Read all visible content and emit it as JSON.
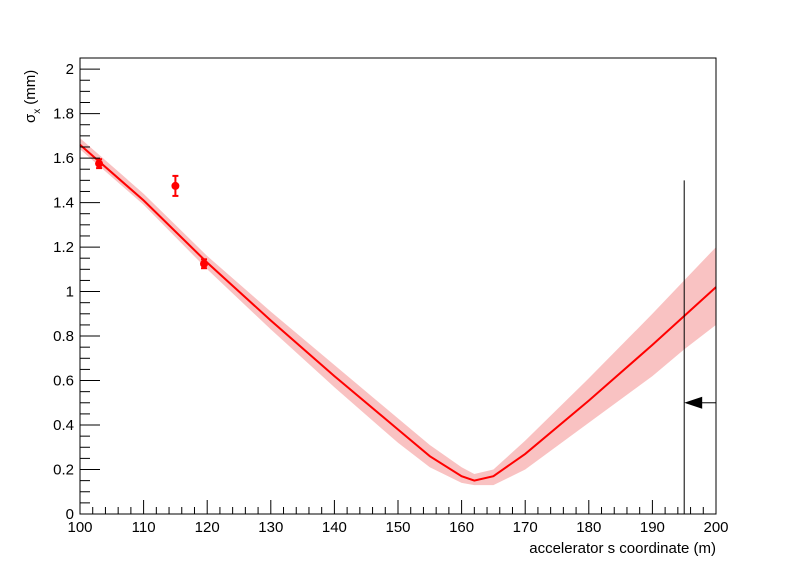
{
  "chart_data": {
    "type": "line",
    "title": "",
    "xlabel": "accelerator s coordinate (m)",
    "ylabel": {
      "symbol": "σ",
      "subscript": "x",
      "unit": "(mm)"
    },
    "xlim": [
      100,
      200
    ],
    "ylim": [
      0,
      2.05
    ],
    "grid": false,
    "legend": "none",
    "x_ticks": [
      100,
      110,
      120,
      130,
      140,
      150,
      160,
      170,
      180,
      190,
      200
    ],
    "x_tick_labels": [
      "100",
      "110",
      "120",
      "130",
      "140",
      "150",
      "160",
      "170",
      "180",
      "190",
      "200"
    ],
    "y_ticks": [
      0,
      0.2,
      0.4,
      0.6,
      0.8,
      1.0,
      1.2,
      1.4,
      1.6,
      1.8,
      2.0
    ],
    "y_tick_labels": [
      "0",
      "0.2",
      "0.4",
      "0.6",
      "0.8",
      "1",
      "1.2",
      "1.4",
      "1.6",
      "1.8",
      "2"
    ],
    "series": [
      {
        "kind": "fit-curve-with-band",
        "color": "#ff0000",
        "band_color": "#f9c2c2",
        "x": [
          100,
          110,
          120,
          130,
          140,
          150,
          155,
          160,
          162,
          165,
          170,
          180,
          190,
          195,
          200
        ],
        "y": [
          1.66,
          1.41,
          1.13,
          0.87,
          0.62,
          0.38,
          0.26,
          0.17,
          0.15,
          0.17,
          0.27,
          0.51,
          0.76,
          0.89,
          1.02
        ],
        "lower": [
          1.64,
          1.39,
          1.1,
          0.83,
          0.57,
          0.32,
          0.21,
          0.14,
          0.13,
          0.13,
          0.2,
          0.41,
          0.62,
          0.74,
          0.85
        ],
        "upper": [
          1.69,
          1.44,
          1.16,
          0.91,
          0.67,
          0.43,
          0.31,
          0.21,
          0.18,
          0.2,
          0.33,
          0.61,
          0.9,
          1.05,
          1.2
        ]
      },
      {
        "kind": "data-points",
        "color": "#ff0000",
        "points": [
          {
            "x": 103.0,
            "y": 1.575,
            "err": 0.02
          },
          {
            "x": 115.0,
            "y": 1.475,
            "err": 0.045
          },
          {
            "x": 119.5,
            "y": 1.125,
            "err": 0.02
          }
        ]
      }
    ],
    "annotations": [
      {
        "type": "vertical-line",
        "x": 195,
        "y_top": 1.5,
        "color": "#000000"
      },
      {
        "type": "arrow",
        "direction": "left",
        "x_from": 200,
        "x_to": 195,
        "y": 0.5,
        "color": "#000000"
      }
    ]
  }
}
